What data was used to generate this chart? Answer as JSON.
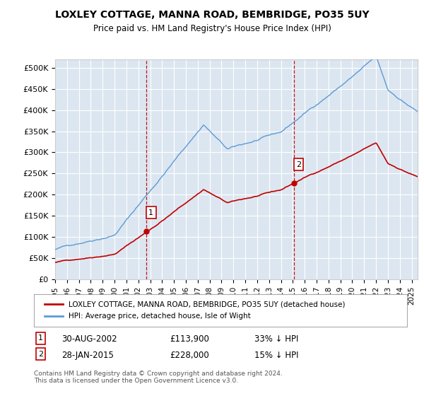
{
  "title": "LOXLEY COTTAGE, MANNA ROAD, BEMBRIDGE, PO35 5UY",
  "subtitle": "Price paid vs. HM Land Registry's House Price Index (HPI)",
  "legend_line1": "LOXLEY COTTAGE, MANNA ROAD, BEMBRIDGE, PO35 5UY (detached house)",
  "legend_line2": "HPI: Average price, detached house, Isle of Wight",
  "annotation1": {
    "label": "1",
    "date_str": "30-AUG-2002",
    "price": "£113,900",
    "hpi_text": "33% ↓ HPI",
    "x_year": 2002.66,
    "y_val": 113900
  },
  "annotation2": {
    "label": "2",
    "date_str": "28-JAN-2015",
    "price": "£228,000",
    "hpi_text": "15% ↓ HPI",
    "x_year": 2015.07,
    "y_val": 228000
  },
  "footer": "Contains HM Land Registry data © Crown copyright and database right 2024.\nThis data is licensed under the Open Government Licence v3.0.",
  "hpi_color": "#5b9bd5",
  "price_color": "#c00000",
  "background_color": "#dce6f1",
  "plot_bg": "#ffffff",
  "ylim": [
    0,
    520000
  ],
  "xlim_start": 1995.0,
  "xlim_end": 2025.5
}
